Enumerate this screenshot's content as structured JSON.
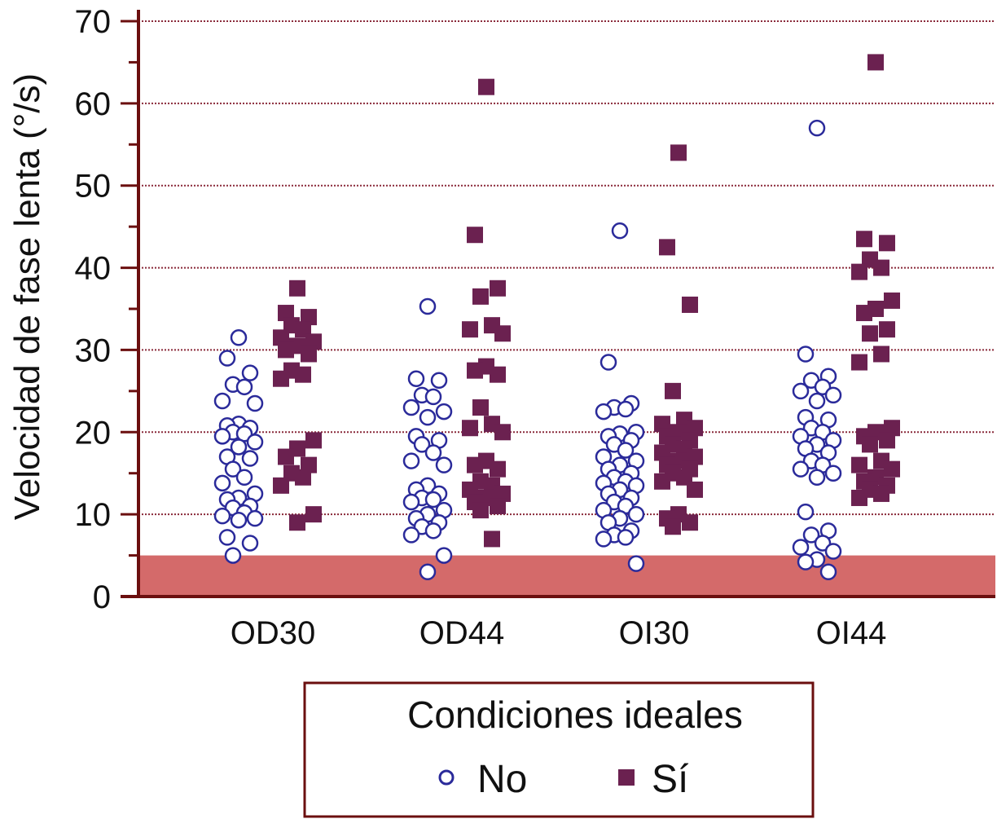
{
  "colors": {
    "no_marker": "#2a2a9a",
    "si_marker": "#6b2150",
    "axis": "#6b0f0f",
    "grid": "#8a2a3a",
    "band": "#d46a6a",
    "legend_border": "#6b0f0f"
  },
  "chart_data": {
    "type": "scatter",
    "ylabel": "Velocidad de fase lenta (°/s)",
    "xlabel": "",
    "ylim": [
      0,
      70
    ],
    "yticks": [
      "0",
      "10",
      "20",
      "30",
      "40",
      "50",
      "60",
      "70"
    ],
    "categories": [
      "OD30",
      "OD44",
      "OI30",
      "OI44"
    ],
    "grid": "horizontal dotted lines at major ticks",
    "shaded_band": [
      0,
      5
    ],
    "legend": {
      "title": "Condiciones ideales",
      "position": "bottom",
      "entries": [
        {
          "label": "No",
          "marker": "circle"
        },
        {
          "label": "Sí",
          "marker": "square"
        }
      ]
    },
    "series": [
      {
        "name": "No",
        "marker": "circle",
        "groups": [
          [
            31.5,
            29,
            27.2,
            25.8,
            25.5,
            23.8,
            23.5,
            21,
            20.8,
            20.5,
            20,
            19.8,
            19.5,
            18.8,
            18.2,
            17,
            16.8,
            15.5,
            14.5,
            13.8,
            12.5,
            12,
            11.8,
            11,
            10.8,
            10.2,
            9.8,
            9.5,
            9.3,
            7.2,
            6.5,
            5
          ],
          [
            35.3,
            26.5,
            26.3,
            24.5,
            24.3,
            23,
            22.5,
            21.8,
            19.5,
            19,
            18.5,
            17.5,
            16.5,
            16,
            13.5,
            13,
            12.5,
            12,
            11.8,
            11.5,
            10.5,
            10,
            9.5,
            9,
            8.5,
            8,
            7.5,
            5,
            3
          ],
          [
            44.5,
            28.5,
            23.5,
            23,
            22.8,
            22.5,
            20,
            19.8,
            19.5,
            19,
            18.5,
            17.8,
            17,
            16.5,
            16,
            15.5,
            15,
            14.5,
            14,
            13.8,
            13.5,
            13,
            12.5,
            12,
            11.5,
            11,
            10.5,
            10,
            9.5,
            9,
            8,
            7.5,
            7.2,
            7,
            4
          ],
          [
            57,
            29.5,
            26.8,
            26.3,
            25.5,
            25,
            24.5,
            23.8,
            21.8,
            21.5,
            20.5,
            20,
            19.5,
            19,
            18.5,
            18,
            17.5,
            16.5,
            16,
            15.5,
            15,
            14.5,
            10.3,
            8,
            7.5,
            6.5,
            6,
            5.5,
            4.5,
            4.2,
            3
          ]
        ]
      },
      {
        "name": "Sí",
        "marker": "square",
        "groups": [
          [
            37.5,
            34.5,
            34,
            33,
            32.5,
            31.5,
            31,
            30.5,
            30,
            29.5,
            27.5,
            27,
            26.5,
            19,
            18,
            17,
            16,
            15,
            14.5,
            13.5,
            10,
            9
          ],
          [
            62,
            44,
            37.5,
            36.5,
            33,
            32.5,
            32,
            28,
            27.5,
            27,
            23,
            21,
            20.5,
            20,
            16.5,
            16,
            15.5,
            14,
            13.5,
            13,
            12.5,
            12,
            11.5,
            11,
            10.5,
            7
          ],
          [
            54,
            42.5,
            35.5,
            25,
            21.5,
            21,
            20.5,
            20,
            19.5,
            19,
            18.5,
            18,
            17.5,
            17,
            16.5,
            16,
            15.5,
            15,
            14.5,
            14,
            13,
            10,
            9.5,
            9,
            8.5
          ],
          [
            65,
            43.5,
            43,
            41,
            40,
            39.5,
            36,
            35,
            34.5,
            32.5,
            32,
            29.5,
            28.5,
            20.5,
            20,
            19.5,
            19,
            18.5,
            16.5,
            16,
            15.5,
            14.5,
            14,
            13.5,
            13,
            12.5,
            12
          ]
        ]
      }
    ]
  }
}
